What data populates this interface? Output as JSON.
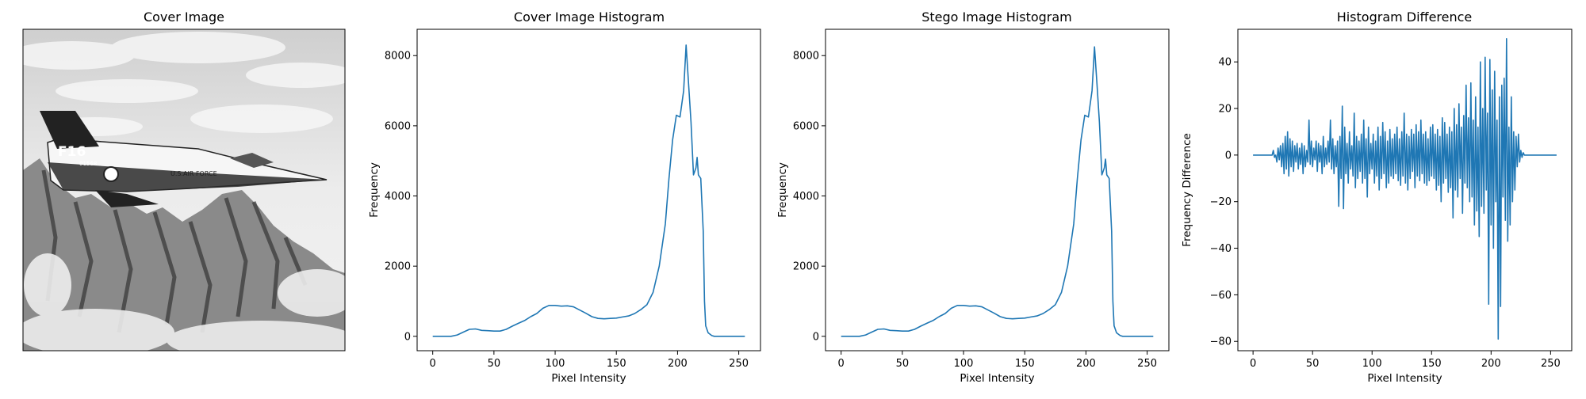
{
  "panels": {
    "image": {
      "title": "Cover Image"
    },
    "cover_hist": {
      "title": "Cover Image Histogram"
    },
    "stego_hist": {
      "title": "Stego Image Histogram"
    },
    "diff": {
      "title": "Histogram Difference"
    }
  },
  "image_content": {
    "description": "grayscale photo of a fighter jet over snowy mountains",
    "tail_marking": "F16",
    "tail_number": "01568",
    "fuselage_text": "U.S.AIR FORCE"
  },
  "colors": {
    "line": "#1f77b4",
    "axes": "#000000",
    "background": "#ffffff"
  },
  "chart_data": [
    {
      "id": "cover_hist",
      "type": "line",
      "title": "Cover Image Histogram",
      "xlabel": "Pixel Intensity",
      "ylabel": "Frequency",
      "xlim": [
        -12.75,
        267.75
      ],
      "ylim": [
        -410,
        8750
      ],
      "xticks": [
        0,
        50,
        100,
        150,
        200,
        250
      ],
      "yticks": [
        0,
        2000,
        4000,
        6000,
        8000
      ],
      "grid": false,
      "points": [
        [
          0,
          0
        ],
        [
          15,
          0
        ],
        [
          20,
          40
        ],
        [
          25,
          120
        ],
        [
          30,
          200
        ],
        [
          35,
          210
        ],
        [
          40,
          170
        ],
        [
          45,
          160
        ],
        [
          50,
          150
        ],
        [
          55,
          150
        ],
        [
          60,
          200
        ],
        [
          65,
          290
        ],
        [
          70,
          370
        ],
        [
          75,
          450
        ],
        [
          80,
          560
        ],
        [
          85,
          650
        ],
        [
          90,
          800
        ],
        [
          95,
          880
        ],
        [
          100,
          880
        ],
        [
          105,
          860
        ],
        [
          110,
          870
        ],
        [
          115,
          840
        ],
        [
          120,
          750
        ],
        [
          125,
          660
        ],
        [
          130,
          560
        ],
        [
          135,
          510
        ],
        [
          140,
          500
        ],
        [
          145,
          510
        ],
        [
          150,
          520
        ],
        [
          155,
          550
        ],
        [
          160,
          580
        ],
        [
          165,
          650
        ],
        [
          170,
          760
        ],
        [
          175,
          900
        ],
        [
          180,
          1250
        ],
        [
          185,
          2000
        ],
        [
          190,
          3200
        ],
        [
          193,
          4500
        ],
        [
          196,
          5600
        ],
        [
          199,
          6300
        ],
        [
          202,
          6250
        ],
        [
          205,
          7000
        ],
        [
          207,
          8300
        ],
        [
          209,
          7200
        ],
        [
          211,
          6100
        ],
        [
          213,
          4600
        ],
        [
          215,
          4800
        ],
        [
          216,
          5100
        ],
        [
          217,
          4600
        ],
        [
          219,
          4500
        ],
        [
          221,
          3000
        ],
        [
          222,
          1000
        ],
        [
          223,
          300
        ],
        [
          225,
          100
        ],
        [
          228,
          20
        ],
        [
          230,
          0
        ],
        [
          255,
          0
        ]
      ]
    },
    {
      "id": "stego_hist",
      "type": "line",
      "title": "Stego Image Histogram",
      "xlabel": "Pixel Intensity",
      "ylabel": "Frequency",
      "xlim": [
        -12.75,
        267.75
      ],
      "ylim": [
        -410,
        8750
      ],
      "xticks": [
        0,
        50,
        100,
        150,
        200,
        250
      ],
      "yticks": [
        0,
        2000,
        4000,
        6000,
        8000
      ],
      "grid": false,
      "points": [
        [
          0,
          0
        ],
        [
          15,
          0
        ],
        [
          20,
          40
        ],
        [
          25,
          120
        ],
        [
          30,
          200
        ],
        [
          35,
          210
        ],
        [
          40,
          170
        ],
        [
          45,
          160
        ],
        [
          50,
          150
        ],
        [
          55,
          150
        ],
        [
          60,
          200
        ],
        [
          65,
          290
        ],
        [
          70,
          370
        ],
        [
          75,
          450
        ],
        [
          80,
          560
        ],
        [
          85,
          650
        ],
        [
          90,
          800
        ],
        [
          95,
          880
        ],
        [
          100,
          880
        ],
        [
          105,
          860
        ],
        [
          110,
          870
        ],
        [
          115,
          840
        ],
        [
          120,
          750
        ],
        [
          125,
          660
        ],
        [
          130,
          560
        ],
        [
          135,
          510
        ],
        [
          140,
          500
        ],
        [
          145,
          510
        ],
        [
          150,
          520
        ],
        [
          155,
          550
        ],
        [
          160,
          580
        ],
        [
          165,
          650
        ],
        [
          170,
          760
        ],
        [
          175,
          900
        ],
        [
          180,
          1250
        ],
        [
          185,
          2000
        ],
        [
          190,
          3200
        ],
        [
          193,
          4500
        ],
        [
          196,
          5600
        ],
        [
          199,
          6300
        ],
        [
          202,
          6250
        ],
        [
          205,
          7000
        ],
        [
          207,
          8250
        ],
        [
          209,
          7200
        ],
        [
          211,
          6100
        ],
        [
          213,
          4600
        ],
        [
          215,
          4800
        ],
        [
          216,
          5050
        ],
        [
          217,
          4600
        ],
        [
          219,
          4500
        ],
        [
          221,
          3000
        ],
        [
          222,
          1000
        ],
        [
          223,
          300
        ],
        [
          225,
          100
        ],
        [
          228,
          20
        ],
        [
          230,
          0
        ],
        [
          255,
          0
        ]
      ]
    },
    {
      "id": "diff",
      "type": "line",
      "title": "Histogram Difference",
      "xlabel": "Pixel Intensity",
      "ylabel": "Frequency Difference",
      "xlim": [
        -12.75,
        267.75
      ],
      "ylim": [
        -84,
        54
      ],
      "xticks": [
        0,
        50,
        100,
        150,
        200,
        250
      ],
      "yticks": [
        -80,
        -60,
        -40,
        -20,
        0,
        20,
        40
      ],
      "grid": false,
      "points": [
        [
          0,
          0
        ],
        [
          16,
          0
        ],
        [
          17,
          2
        ],
        [
          18,
          -1
        ],
        [
          19,
          0
        ],
        [
          20,
          -3
        ],
        [
          21,
          3
        ],
        [
          22,
          -2
        ],
        [
          23,
          4
        ],
        [
          24,
          -5
        ],
        [
          25,
          5
        ],
        [
          26,
          -8
        ],
        [
          27,
          8
        ],
        [
          28,
          -6
        ],
        [
          29,
          10
        ],
        [
          30,
          -9
        ],
        [
          31,
          7
        ],
        [
          32,
          -5
        ],
        [
          33,
          6
        ],
        [
          34,
          -7
        ],
        [
          35,
          4
        ],
        [
          36,
          -3
        ],
        [
          37,
          5
        ],
        [
          38,
          -6
        ],
        [
          39,
          3
        ],
        [
          40,
          -4
        ],
        [
          41,
          5
        ],
        [
          42,
          -8
        ],
        [
          43,
          4
        ],
        [
          44,
          -5
        ],
        [
          45,
          2
        ],
        [
          46,
          -3
        ],
        [
          47,
          15
        ],
        [
          48,
          -4
        ],
        [
          49,
          6
        ],
        [
          50,
          -5
        ],
        [
          51,
          3
        ],
        [
          52,
          -2
        ],
        [
          53,
          6
        ],
        [
          54,
          -7
        ],
        [
          55,
          5
        ],
        [
          56,
          -3
        ],
        [
          57,
          4
        ],
        [
          58,
          -8
        ],
        [
          59,
          8
        ],
        [
          60,
          -5
        ],
        [
          61,
          3
        ],
        [
          62,
          -4
        ],
        [
          63,
          6
        ],
        [
          64,
          -3
        ],
        [
          65,
          15
        ],
        [
          66,
          -6
        ],
        [
          67,
          7
        ],
        [
          68,
          -8
        ],
        [
          69,
          4
        ],
        [
          70,
          -5
        ],
        [
          71,
          6
        ],
        [
          72,
          -22
        ],
        [
          73,
          8
        ],
        [
          74,
          -10
        ],
        [
          75,
          21
        ],
        [
          76,
          -23
        ],
        [
          77,
          12
        ],
        [
          78,
          -8
        ],
        [
          79,
          5
        ],
        [
          80,
          -12
        ],
        [
          81,
          10
        ],
        [
          82,
          -6
        ],
        [
          83,
          4
        ],
        [
          84,
          -9
        ],
        [
          85,
          18
        ],
        [
          86,
          -14
        ],
        [
          87,
          8
        ],
        [
          88,
          -10
        ],
        [
          89,
          6
        ],
        [
          90,
          -7
        ],
        [
          91,
          9
        ],
        [
          92,
          -12
        ],
        [
          93,
          15
        ],
        [
          94,
          -10
        ],
        [
          95,
          7
        ],
        [
          96,
          -18
        ],
        [
          97,
          12
        ],
        [
          98,
          -8
        ],
        [
          99,
          5
        ],
        [
          100,
          -6
        ],
        [
          101,
          9
        ],
        [
          102,
          -12
        ],
        [
          103,
          6
        ],
        [
          104,
          -9
        ],
        [
          105,
          12
        ],
        [
          106,
          -15
        ],
        [
          107,
          8
        ],
        [
          108,
          -10
        ],
        [
          109,
          14
        ],
        [
          110,
          -8
        ],
        [
          111,
          10
        ],
        [
          112,
          -14
        ],
        [
          113,
          6
        ],
        [
          114,
          -12
        ],
        [
          115,
          11
        ],
        [
          116,
          -9
        ],
        [
          117,
          7
        ],
        [
          118,
          -10
        ],
        [
          119,
          9
        ],
        [
          120,
          -8
        ],
        [
          121,
          12
        ],
        [
          122,
          -11
        ],
        [
          123,
          7
        ],
        [
          124,
          -13
        ],
        [
          125,
          10
        ],
        [
          126,
          -9
        ],
        [
          127,
          18
        ],
        [
          128,
          -12
        ],
        [
          129,
          9
        ],
        [
          130,
          -15
        ],
        [
          131,
          8
        ],
        [
          132,
          -10
        ],
        [
          133,
          11
        ],
        [
          134,
          -7
        ],
        [
          135,
          9
        ],
        [
          136,
          -14
        ],
        [
          137,
          13
        ],
        [
          138,
          -9
        ],
        [
          139,
          10
        ],
        [
          140,
          -11
        ],
        [
          141,
          15
        ],
        [
          142,
          -8
        ],
        [
          143,
          9
        ],
        [
          144,
          -12
        ],
        [
          145,
          10
        ],
        [
          146,
          -13
        ],
        [
          147,
          7
        ],
        [
          148,
          -11
        ],
        [
          149,
          12
        ],
        [
          150,
          -9
        ],
        [
          151,
          13
        ],
        [
          152,
          -10
        ],
        [
          153,
          9
        ],
        [
          154,
          -15
        ],
        [
          155,
          11
        ],
        [
          156,
          -13
        ],
        [
          157,
          8
        ],
        [
          158,
          -20
        ],
        [
          159,
          16
        ],
        [
          160,
          -12
        ],
        [
          161,
          14
        ],
        [
          162,
          -10
        ],
        [
          163,
          9
        ],
        [
          164,
          -16
        ],
        [
          165,
          12
        ],
        [
          166,
          -14
        ],
        [
          167,
          10
        ],
        [
          168,
          -27
        ],
        [
          169,
          20
        ],
        [
          170,
          -15
        ],
        [
          171,
          13
        ],
        [
          172,
          -18
        ],
        [
          173,
          22
        ],
        [
          174,
          -10
        ],
        [
          175,
          12
        ],
        [
          176,
          -25
        ],
        [
          177,
          17
        ],
        [
          178,
          -12
        ],
        [
          179,
          30
        ],
        [
          180,
          -14
        ],
        [
          181,
          16
        ],
        [
          182,
          -20
        ],
        [
          183,
          31
        ],
        [
          184,
          -18
        ],
        [
          185,
          15
        ],
        [
          186,
          -30
        ],
        [
          187,
          25
        ],
        [
          188,
          -24
        ],
        [
          189,
          12
        ],
        [
          190,
          -35
        ],
        [
          191,
          40
        ],
        [
          192,
          -22
        ],
        [
          193,
          20
        ],
        [
          194,
          -25
        ],
        [
          195,
          42
        ],
        [
          196,
          -15
        ],
        [
          197,
          18
        ],
        [
          198,
          -64
        ],
        [
          199,
          41
        ],
        [
          200,
          -30
        ],
        [
          201,
          28
        ],
        [
          202,
          -40
        ],
        [
          203,
          36
        ],
        [
          204,
          -20
        ],
        [
          205,
          15
        ],
        [
          206,
          -79
        ],
        [
          207,
          25
        ],
        [
          208,
          -65
        ],
        [
          209,
          30
        ],
        [
          210,
          -18
        ],
        [
          211,
          33
        ],
        [
          212,
          -28
        ],
        [
          213,
          50
        ],
        [
          214,
          -37
        ],
        [
          215,
          12
        ],
        [
          216,
          -30
        ],
        [
          217,
          25
        ],
        [
          218,
          -20
        ],
        [
          219,
          10
        ],
        [
          220,
          -15
        ],
        [
          221,
          8
        ],
        [
          222,
          -5
        ],
        [
          223,
          9
        ],
        [
          224,
          -3
        ],
        [
          225,
          2
        ],
        [
          226,
          -1
        ],
        [
          227,
          1
        ],
        [
          228,
          0
        ],
        [
          255,
          0
        ]
      ]
    }
  ]
}
